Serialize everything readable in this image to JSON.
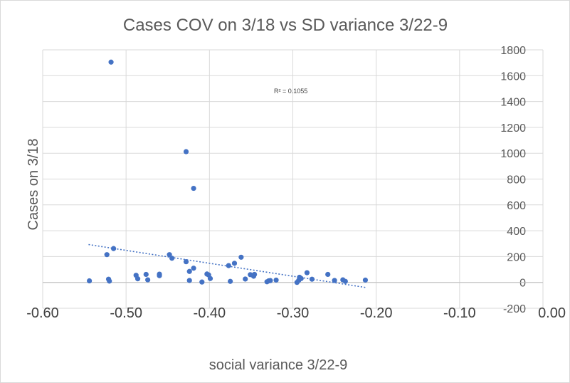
{
  "chart_data": {
    "type": "scatter",
    "title": "Cases COV on 3/18 vs SD variance 3/22-9",
    "xlabel": "social variance 3/22-9",
    "ylabel": "Cases on 3/18",
    "xlim": [
      -0.6,
      0.0
    ],
    "ylim": [
      -200,
      1800
    ],
    "x_ticks": [
      -0.6,
      -0.5,
      -0.4,
      -0.3,
      -0.2,
      -0.1,
      0.0
    ],
    "x_tick_labels": [
      "-0.60",
      "-0.50",
      "-0.40",
      "-0.30",
      "-0.20",
      "-0.10",
      "0.00"
    ],
    "y_ticks": [
      -200,
      0,
      200,
      400,
      600,
      800,
      1000,
      1200,
      1400,
      1600,
      1800
    ],
    "y_tick_labels": [
      "-200",
      "0",
      "200",
      "400",
      "600",
      "800",
      "1000",
      "1200",
      "1400",
      "1600",
      "1800"
    ],
    "grid": true,
    "legend": "none",
    "colors": {
      "marker": "#4472c4",
      "trendline": "#4472c4",
      "grid": "#d9d9d9",
      "text": "#595959"
    },
    "trendline": {
      "type": "linear",
      "style": "dotted",
      "x_range": [
        -0.545,
        -0.212
      ],
      "y_start": 293,
      "y_end": -40,
      "r_squared_label": "R² = 0.1055"
    },
    "series": [
      {
        "name": "Cases on 3/18",
        "points": [
          [
            -0.544,
            12
          ],
          [
            -0.523,
            215
          ],
          [
            -0.521,
            25
          ],
          [
            -0.52,
            10
          ],
          [
            -0.518,
            1705
          ],
          [
            -0.515,
            262
          ],
          [
            -0.488,
            55
          ],
          [
            -0.486,
            28
          ],
          [
            -0.476,
            62
          ],
          [
            -0.474,
            20
          ],
          [
            -0.46,
            52
          ],
          [
            -0.46,
            64
          ],
          [
            -0.448,
            215
          ],
          [
            -0.445,
            187
          ],
          [
            -0.428,
            1012
          ],
          [
            -0.428,
            160
          ],
          [
            -0.424,
            85
          ],
          [
            -0.424,
            15
          ],
          [
            -0.419,
            728
          ],
          [
            -0.419,
            110
          ],
          [
            -0.409,
            3
          ],
          [
            -0.403,
            65
          ],
          [
            -0.401,
            58
          ],
          [
            -0.399,
            30
          ],
          [
            -0.377,
            130
          ],
          [
            -0.375,
            8
          ],
          [
            -0.37,
            148
          ],
          [
            -0.362,
            195
          ],
          [
            -0.357,
            26
          ],
          [
            -0.351,
            60
          ],
          [
            -0.347,
            48
          ],
          [
            -0.346,
            62
          ],
          [
            -0.331,
            5
          ],
          [
            -0.329,
            12
          ],
          [
            -0.327,
            14
          ],
          [
            -0.32,
            18
          ],
          [
            -0.295,
            0
          ],
          [
            -0.293,
            15
          ],
          [
            -0.292,
            40
          ],
          [
            -0.29,
            30
          ],
          [
            -0.283,
            75
          ],
          [
            -0.277,
            25
          ],
          [
            -0.258,
            62
          ],
          [
            -0.25,
            15
          ],
          [
            -0.24,
            20
          ],
          [
            -0.237,
            8
          ],
          [
            -0.213,
            18
          ]
        ]
      }
    ]
  }
}
